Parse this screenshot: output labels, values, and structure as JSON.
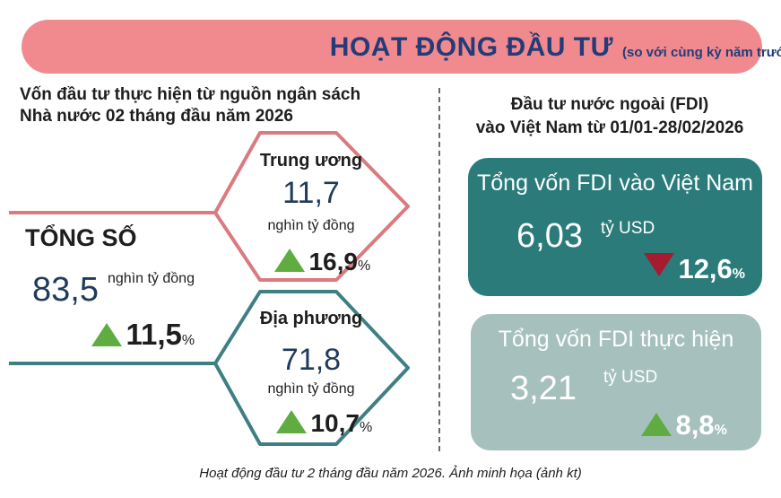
{
  "banner": {
    "title": "HOẠT ĐỘNG ĐẦU TƯ",
    "subtitle": "(so với cùng kỳ năm trước)"
  },
  "left": {
    "heading_line1": "Vốn đầu tư thực hiện từ nguồn ngân sách",
    "heading_line2": "Nhà nước 02 tháng đầu năm 2026",
    "total": {
      "label": "TỔNG SỐ",
      "value": "83,5",
      "unit": "nghìn tỷ đồng",
      "change": "11,5",
      "change_unit": "%"
    },
    "central": {
      "title": "Trung ương",
      "value": "11,7",
      "unit": "nghìn tỷ đồng",
      "change": "16,9",
      "change_unit": "%"
    },
    "local": {
      "title": "Địa phương",
      "value": "71,8",
      "unit": "nghìn tỷ đồng",
      "change": "10,7",
      "change_unit": "%"
    }
  },
  "right": {
    "heading_line1": "Đầu tư nước ngoài (FDI)",
    "heading_line2": "vào Việt Nam từ 01/01-28/02/2026",
    "fdi_total": {
      "title": "Tổng vốn FDI vào Việt Nam",
      "value": "6,03",
      "unit": "tỷ USD",
      "change": "12,6",
      "change_unit": "%",
      "direction": "down"
    },
    "fdi_realized": {
      "title": "Tổng vốn FDI thực hiện",
      "value": "3,21",
      "unit": "tỷ USD",
      "change": "8,8",
      "change_unit": "%",
      "direction": "up"
    }
  },
  "caption": "Hoạt động đầu tư 2 tháng đầu năm 2026. Ảnh minh họa (ảnh kt)",
  "colors": {
    "banner": "#f08a8e",
    "navy_text": "#233c78",
    "red_line": "#d97b80",
    "teal_line": "#3f7f83",
    "up": "#5fad41",
    "down": "#a51b30",
    "card_dark": "#2b7b7b",
    "card_light": "#a6c1bd"
  }
}
